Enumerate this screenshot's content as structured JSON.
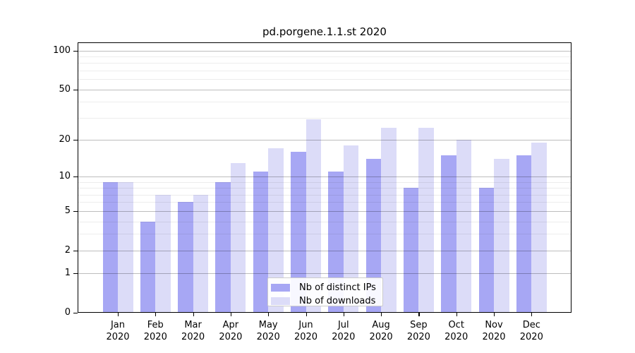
{
  "chart_data": {
    "type": "bar",
    "title": "pd.porgene.1.1.st 2020",
    "categories": [
      "Jan",
      "Feb",
      "Mar",
      "Apr",
      "May",
      "Jun",
      "Jul",
      "Aug",
      "Sep",
      "Oct",
      "Nov",
      "Dec"
    ],
    "year_label": "2020",
    "series": [
      {
        "name": "Nb of distinct IPs",
        "color": "#a7a7f4",
        "values": [
          9,
          4,
          6,
          9,
          11,
          16,
          11,
          14,
          8,
          15,
          8,
          15
        ]
      },
      {
        "name": "Nb of downloads",
        "color": "#dcdcf8",
        "values": [
          9,
          7,
          7,
          13,
          17,
          29,
          18,
          25,
          25,
          20,
          14,
          19
        ]
      }
    ],
    "xlabel": "",
    "ylabel": "",
    "y_tick_labels": [
      100,
      50,
      20,
      10,
      5,
      2,
      1,
      0
    ],
    "minor_gridline_values": [
      3,
      4,
      6,
      7,
      8,
      9,
      30,
      40,
      60,
      70,
      80,
      90
    ],
    "scale": "log1p",
    "ylim": [
      0,
      113
    ],
    "grid": true,
    "legend_position": "bottom-center",
    "frame_color": "#000000",
    "background_color": "#ffffff"
  }
}
